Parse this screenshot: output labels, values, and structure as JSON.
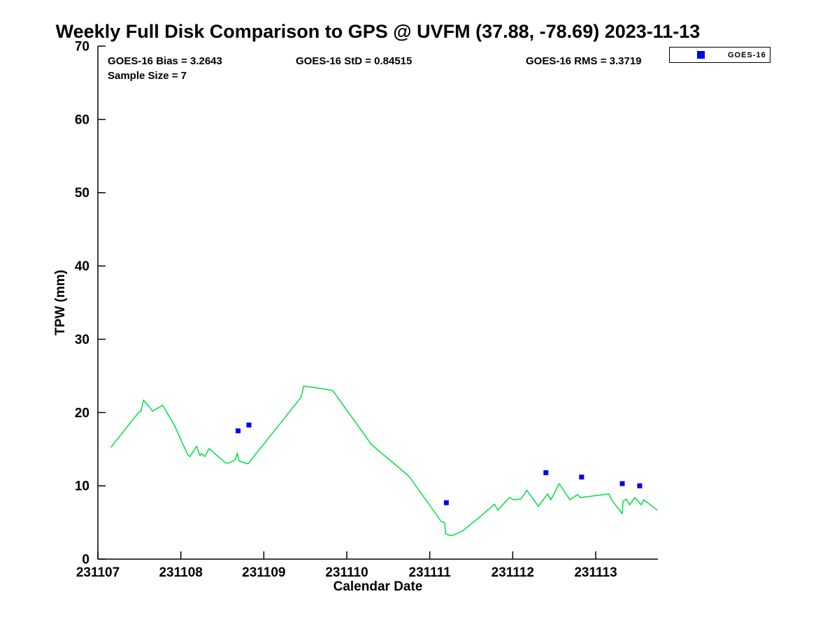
{
  "title": "Weekly Full Disk Comparison to GPS @ UVFM (37.88, -78.69) 2023-11-13",
  "annotations": {
    "bias": "GOES-16 Bias = 3.2643",
    "std": "GOES-16 StD = 0.84515",
    "rms": "GOES-16 RMS = 3.3719",
    "sample_size": "Sample Size = 7"
  },
  "legend": {
    "entries": [
      {
        "label": "GOES-16",
        "marker": "square",
        "color": "#0000f0"
      }
    ]
  },
  "colors": {
    "axis": "#000000",
    "gps_line": "#00e040",
    "goes16_marker": "#0000f0",
    "background": "#ffffff"
  },
  "chart_data": {
    "type": "line",
    "title": "Weekly Full Disk Comparison to GPS @ UVFM (37.88, -78.69) 2023-11-13",
    "xlabel": "Calendar Date",
    "ylabel": "TPW (mm)",
    "xlim": [
      231107,
      231113.75
    ],
    "ylim": [
      0,
      70
    ],
    "x_ticks": [
      231107,
      231108,
      231109,
      231110,
      231111,
      231112,
      231113
    ],
    "y_ticks": [
      0,
      10,
      20,
      30,
      40,
      50,
      60,
      70
    ],
    "grid": false,
    "legend_position": "northeast-outside",
    "series": [
      {
        "name": "GPS (green line, unlabeled)",
        "type": "line",
        "color": "#00e040",
        "points": [
          [
            231107.16,
            15.3
          ],
          [
            231107.49,
            20.0
          ],
          [
            231107.52,
            20.2
          ],
          [
            231107.55,
            21.7
          ],
          [
            231107.66,
            20.2
          ],
          [
            231107.78,
            21.0
          ],
          [
            231107.92,
            18.3
          ],
          [
            231108.08,
            14.3
          ],
          [
            231108.11,
            14.0
          ],
          [
            231108.19,
            15.4
          ],
          [
            231108.23,
            14.1
          ],
          [
            231108.25,
            14.4
          ],
          [
            231108.29,
            14.0
          ],
          [
            231108.34,
            15.1
          ],
          [
            231108.54,
            13.1
          ],
          [
            231108.58,
            13.1
          ],
          [
            231108.66,
            13.6
          ],
          [
            231108.68,
            14.5
          ],
          [
            231108.7,
            13.4
          ],
          [
            231108.78,
            13.1
          ],
          [
            231108.81,
            13.0
          ],
          [
            231108.83,
            13.3
          ],
          [
            231109.45,
            22.1
          ],
          [
            231109.48,
            23.6
          ],
          [
            231109.62,
            23.4
          ],
          [
            231109.83,
            23.0
          ],
          [
            231110.3,
            15.6
          ],
          [
            231110.75,
            11.3
          ],
          [
            231111.14,
            5.1
          ],
          [
            231111.18,
            5.0
          ],
          [
            231111.19,
            3.5
          ],
          [
            231111.22,
            3.3
          ],
          [
            231111.27,
            3.2
          ],
          [
            231111.39,
            3.8
          ],
          [
            231111.62,
            5.9
          ],
          [
            231111.78,
            7.5
          ],
          [
            231111.82,
            6.7
          ],
          [
            231111.96,
            8.4
          ],
          [
            231112.01,
            8.1
          ],
          [
            231112.1,
            8.2
          ],
          [
            231112.17,
            9.4
          ],
          [
            231112.31,
            7.2
          ],
          [
            231112.42,
            8.9
          ],
          [
            231112.46,
            8.1
          ],
          [
            231112.56,
            10.3
          ],
          [
            231112.69,
            8.1
          ],
          [
            231112.78,
            8.8
          ],
          [
            231112.82,
            8.4
          ],
          [
            231113.16,
            8.9
          ],
          [
            231113.19,
            8.1
          ],
          [
            231113.32,
            6.2
          ],
          [
            231113.33,
            7.9
          ],
          [
            231113.37,
            8.2
          ],
          [
            231113.41,
            7.4
          ],
          [
            231113.47,
            8.4
          ],
          [
            231113.55,
            7.4
          ],
          [
            231113.58,
            8.1
          ],
          [
            231113.74,
            6.7
          ]
        ]
      },
      {
        "name": "GOES-16",
        "type": "scatter",
        "marker": "square",
        "marker_size": 7,
        "color": "#0000f0",
        "points": [
          [
            231108.69,
            17.5
          ],
          [
            231108.82,
            18.3
          ],
          [
            231111.2,
            7.7
          ],
          [
            231112.4,
            11.8
          ],
          [
            231112.83,
            11.2
          ],
          [
            231113.32,
            10.3
          ],
          [
            231113.53,
            10.0
          ]
        ]
      }
    ]
  }
}
